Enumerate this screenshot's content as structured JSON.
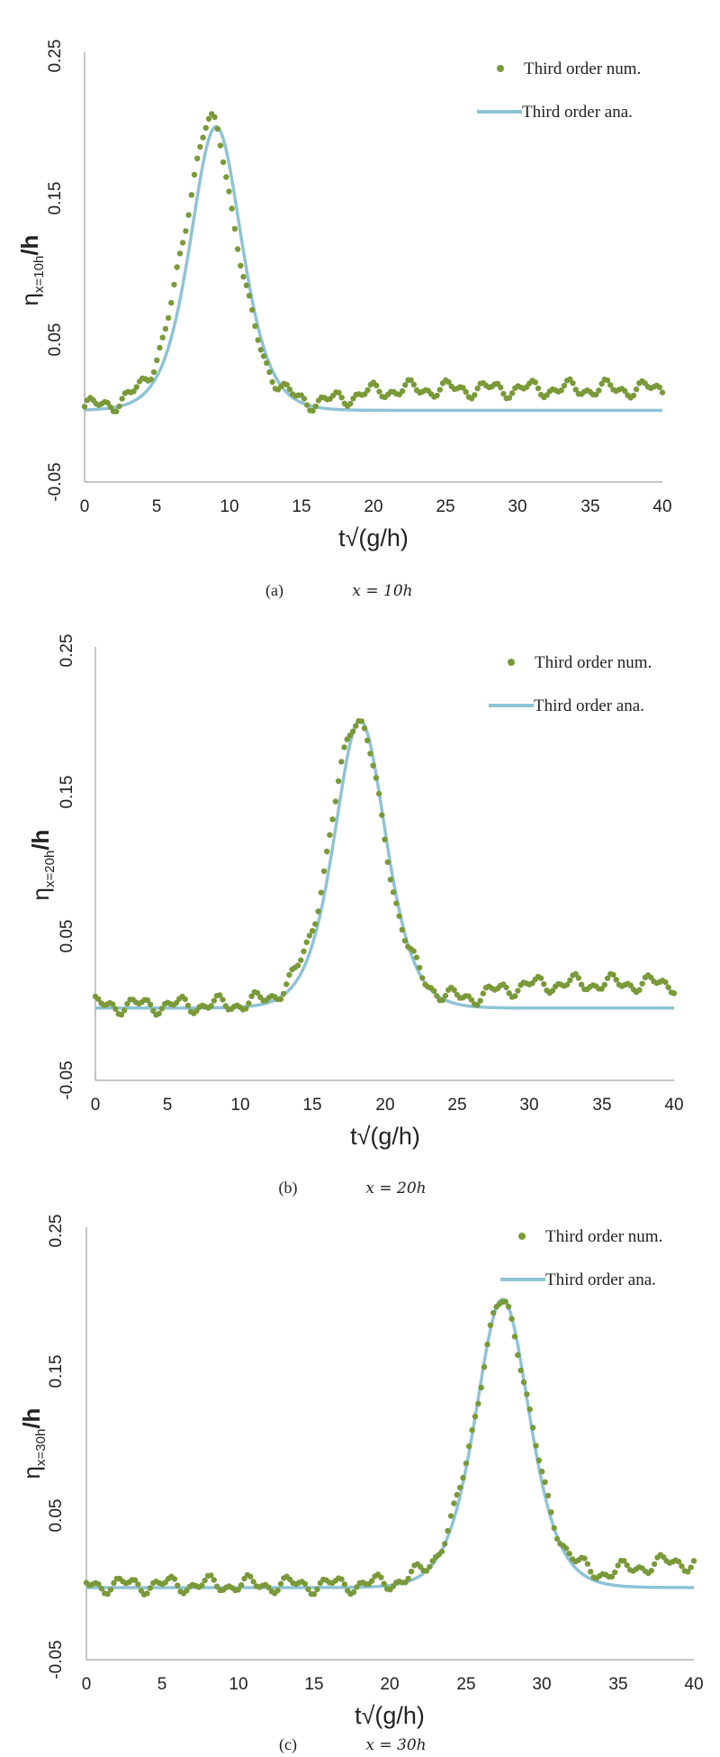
{
  "figure": {
    "xlabel": "t√(g/h)",
    "legend_num": "Third order num.",
    "legend_ana": "Third order ana.",
    "colors": {
      "numerical": "#7a9a3a",
      "analytical": "#8fc3d6"
    }
  },
  "panels": [
    {
      "ylabel": "η x=10h /h",
      "ylabel_main": "η",
      "ylabel_sub": "x=10h",
      "ylabel_tail": "/h",
      "caption_letter": "(a)",
      "caption_text": "x = 10h"
    },
    {
      "ylabel": "η x=20h /h",
      "ylabel_main": "η",
      "ylabel_sub": "x=20h",
      "ylabel_tail": "/h",
      "caption_letter": "(b)",
      "caption_text": "x = 20h"
    },
    {
      "ylabel": "η x=30h /h",
      "ylabel_main": "η",
      "ylabel_sub": "x=30h",
      "ylabel_tail": "/h",
      "caption_letter": "(c)",
      "caption_text": "x = 30h"
    }
  ],
  "chart_data": [
    {
      "type": "scatter",
      "xlabel": "t√(g/h)",
      "ylabel": "η x=10h /h",
      "xlim": [
        0,
        40
      ],
      "ylim": [
        -0.05,
        0.25
      ],
      "xticks": [
        "0",
        "5",
        "10",
        "15",
        "20",
        "25",
        "30",
        "35",
        "40"
      ],
      "yticks": [
        "-0.05",
        "0.05",
        "0.15",
        "0.25"
      ],
      "grid": false,
      "legend_position": "top-right",
      "series": [
        {
          "name": "Third order num.",
          "kind": "points",
          "peak_t": 8.7,
          "peak_amp": 0.199,
          "baseline_level": 0.013,
          "baseline_start": 18
        },
        {
          "name": "Third order ana.",
          "kind": "line",
          "peak_t": 9.1,
          "peak_amp": 0.198,
          "tail_level": 0.0
        }
      ]
    },
    {
      "type": "scatter",
      "xlabel": "t√(g/h)",
      "ylabel": "η x=20h /h",
      "xlim": [
        0,
        40
      ],
      "ylim": [
        -0.05,
        0.25
      ],
      "xticks": [
        "0",
        "5",
        "10",
        "15",
        "20",
        "25",
        "30",
        "35",
        "40"
      ],
      "yticks": [
        "-0.05",
        "0.05",
        "0.15",
        "0.25"
      ],
      "grid": false,
      "legend_position": "top-right",
      "series": [
        {
          "name": "Third order num.",
          "kind": "points",
          "peak_t": 18.1,
          "peak_amp": 0.199,
          "baseline_level": 0.015,
          "baseline_start": 27
        },
        {
          "name": "Third order ana.",
          "kind": "line",
          "peak_t": 18.3,
          "peak_amp": 0.199,
          "tail_level": 0.0
        }
      ]
    },
    {
      "type": "scatter",
      "xlabel": "t√(g/h)",
      "ylabel": "η x=30h /h",
      "xlim": [
        0,
        40
      ],
      "ylim": [
        -0.05,
        0.25
      ],
      "xticks": [
        "0",
        "5",
        "10",
        "15",
        "20",
        "25",
        "30",
        "35",
        "40"
      ],
      "yticks": [
        "-0.05",
        "0.05",
        "0.15",
        "0.25"
      ],
      "grid": false,
      "legend_position": "top-right",
      "series": [
        {
          "name": "Third order num.",
          "kind": "points",
          "peak_t": 27.4,
          "peak_amp": 0.195,
          "baseline_level": 0.016,
          "baseline_start": 35
        },
        {
          "name": "Third order ana.",
          "kind": "line",
          "peak_t": 27.4,
          "peak_amp": 0.2,
          "tail_level": 0.0
        }
      ]
    }
  ]
}
